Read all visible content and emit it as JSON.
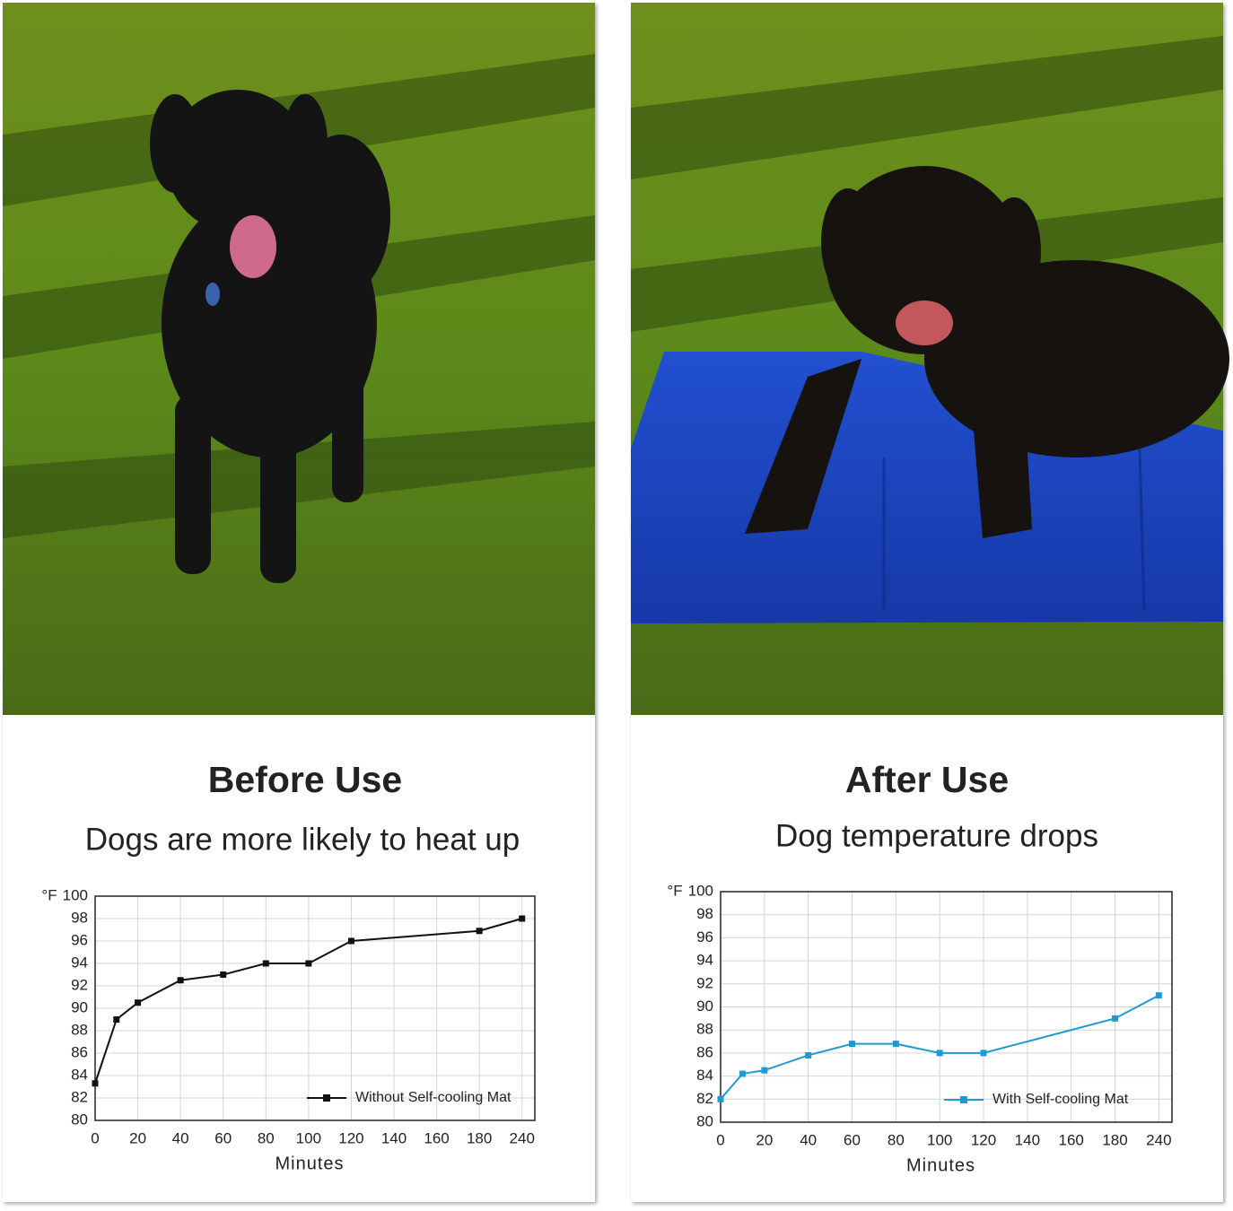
{
  "chart_data": [
    {
      "type": "line",
      "title": "Before Use",
      "subtitle": "Dogs are more likely to heat up",
      "y_unit": "°F",
      "xlabel": "Minutes",
      "x": [
        0,
        0.5,
        1,
        2,
        3,
        4,
        5,
        6,
        9,
        10
      ],
      "series": [
        {
          "name": "Without Self-cooling Mat",
          "color": "#111111",
          "values": [
            83.3,
            89,
            90.5,
            92.5,
            93,
            94,
            94,
            96,
            96.9,
            98
          ]
        }
      ],
      "xlim": [
        0,
        10.3
      ],
      "ylim": [
        80,
        100
      ],
      "xticks": [
        {
          "value": 0,
          "label": "0"
        },
        {
          "value": 1,
          "label": "20"
        },
        {
          "value": 2,
          "label": "40"
        },
        {
          "value": 3,
          "label": "60"
        },
        {
          "value": 4,
          "label": "80"
        },
        {
          "value": 5,
          "label": "100"
        },
        {
          "value": 6,
          "label": "120"
        },
        {
          "value": 7,
          "label": "140"
        },
        {
          "value": 8,
          "label": "160"
        },
        {
          "value": 9,
          "label": "180"
        },
        {
          "value": 10,
          "label": "240"
        }
      ],
      "yticks": [
        80,
        82,
        84,
        86,
        88,
        90,
        92,
        94,
        96,
        98,
        100
      ],
      "grid": true,
      "legend": "lower right"
    },
    {
      "type": "line",
      "title": "After Use",
      "subtitle": "Dog temperature drops",
      "y_unit": "°F",
      "xlabel": "Minutes",
      "x": [
        0,
        0.5,
        1,
        2,
        3,
        4,
        5,
        6,
        9,
        10
      ],
      "series": [
        {
          "name": "With Self-cooling Mat",
          "color": "#1d9bd1",
          "values": [
            82,
            84.2,
            84.5,
            85.8,
            86.8,
            86.8,
            86,
            86,
            89,
            91
          ]
        }
      ],
      "xlim": [
        0,
        10.3
      ],
      "ylim": [
        80,
        100
      ],
      "xticks": [
        {
          "value": 0,
          "label": "0"
        },
        {
          "value": 1,
          "label": "20"
        },
        {
          "value": 2,
          "label": "40"
        },
        {
          "value": 3,
          "label": "60"
        },
        {
          "value": 4,
          "label": "80"
        },
        {
          "value": 5,
          "label": "100"
        },
        {
          "value": 6,
          "label": "120"
        },
        {
          "value": 7,
          "label": "140"
        },
        {
          "value": 8,
          "label": "160"
        },
        {
          "value": 9,
          "label": "180"
        },
        {
          "value": 10,
          "label": "240"
        }
      ],
      "yticks": [
        80,
        82,
        84,
        86,
        88,
        90,
        92,
        94,
        96,
        98,
        100
      ],
      "grid": true,
      "legend": "lower right"
    }
  ]
}
